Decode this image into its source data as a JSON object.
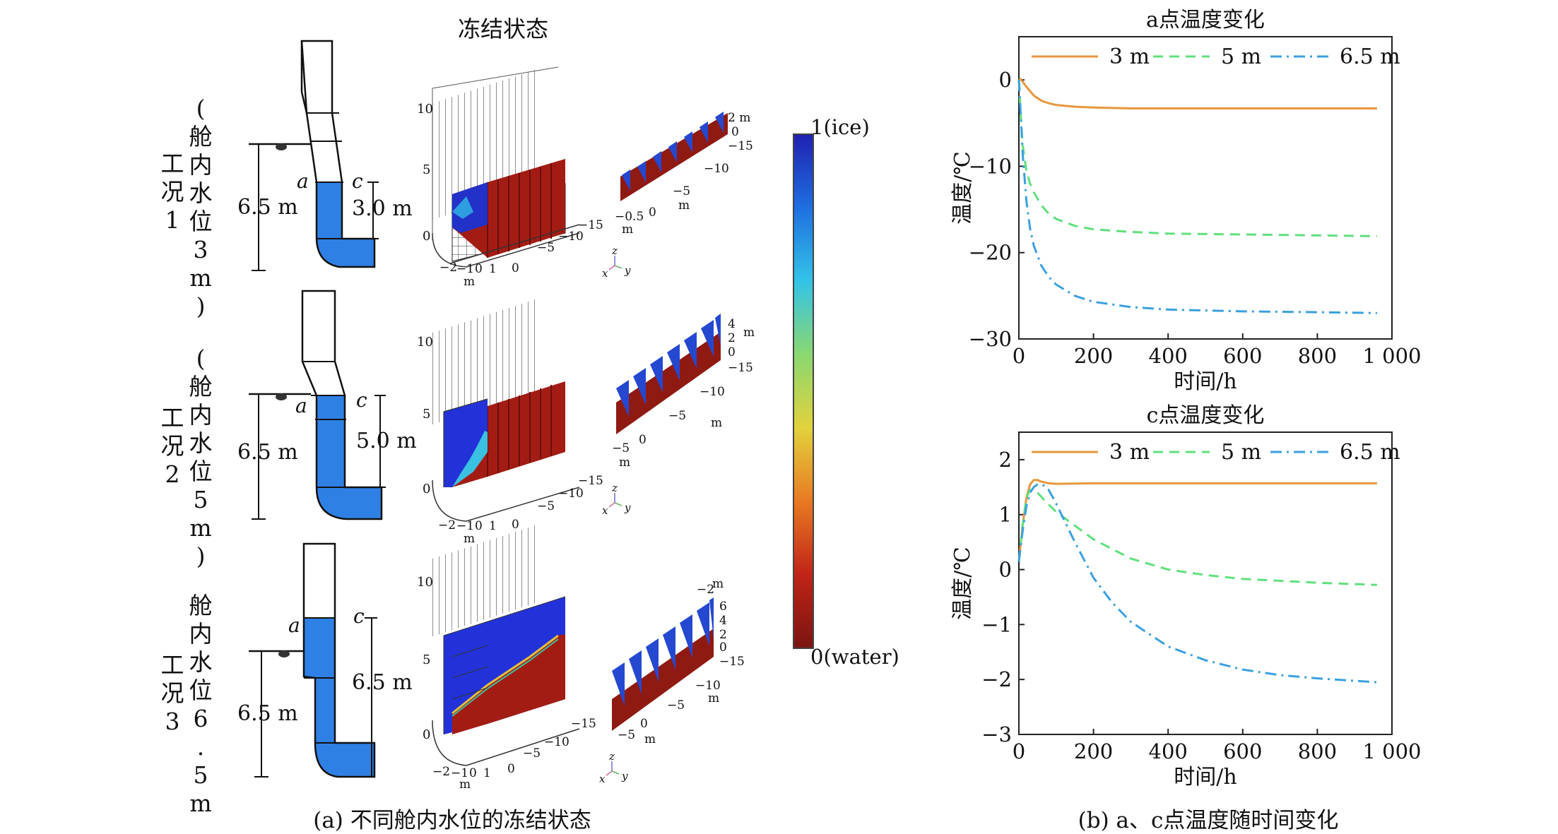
{
  "panel_a": {
    "title": "冻结状态",
    "caption": "(a) 不同舱内水位的冻结状态",
    "colorbar": {
      "top_label": "1(ice)",
      "bottom_label": "0(water)",
      "colors": [
        "#2020b0",
        "#1e6fe0",
        "#33c3e8",
        "#8ad870",
        "#e2d23c",
        "#e87a22",
        "#c02418",
        "#7a1410"
      ]
    },
    "cases": [
      {
        "left_label": "(\n舱\n内\n水\n位\n3\nm\n)",
        "right_label": "工\n况\n1",
        "height_label": "6.5 m",
        "level_label": "3.0 m",
        "point_a": "a",
        "point_c": "c",
        "main_z_ticks": [
          "10",
          "5",
          "0"
        ],
        "main_x_ticks": [
          "−2",
          "−1",
          "0",
          "1"
        ],
        "main_x_unit": "m",
        "main_y_ticks": [
          "0",
          "−5",
          "−10",
          "−15"
        ],
        "small_z_ticks": [
          "2 m",
          "0",
          "−15"
        ],
        "small_y_ticks": [
          "−10",
          "−5",
          "m"
        ],
        "small_x_ticks": [
          "−0.5",
          "0",
          "m"
        ],
        "axis_names": [
          "z",
          "x",
          "y"
        ]
      },
      {
        "left_label": "(\n舱\n内\n水\n位\n5\nm\n)",
        "right_label": "工\n况\n2",
        "height_label": "6.5 m",
        "level_label": "5.0 m",
        "point_a": "a",
        "point_c": "c",
        "main_z_ticks": [
          "10",
          "5",
          "0"
        ],
        "main_x_ticks": [
          "−2",
          "−1",
          "0",
          "1"
        ],
        "main_x_unit": "m",
        "main_y_ticks": [
          "0",
          "−5",
          "−10",
          "−15"
        ],
        "small_z_ticks": [
          "4",
          "m",
          "2",
          "0",
          "−15"
        ],
        "small_y_ticks": [
          "−10",
          "−5",
          "m"
        ],
        "small_x_ticks": [
          "−5",
          "0",
          "m"
        ],
        "axis_names": [
          "z",
          "x",
          "y"
        ]
      },
      {
        "left_label": "舱\n内\n水\n位\n6\n.\n5\nm",
        "right_label": "工\n况\n3",
        "height_label": "6.5 m",
        "level_label": "6.5 m",
        "point_a": "a",
        "point_c": "c",
        "main_z_ticks": [
          "10",
          "5",
          "0"
        ],
        "main_x_ticks": [
          "−2",
          "−1",
          "0",
          "1"
        ],
        "main_x_unit": "m",
        "main_y_ticks": [
          "0",
          "−5",
          "−10",
          "−15"
        ],
        "small_z_ticks": [
          "m",
          "−2",
          "6",
          "4",
          "2",
          "0",
          "−15"
        ],
        "small_y_ticks": [
          "−10",
          "−5",
          "m"
        ],
        "small_x_ticks": [
          "−5",
          "0",
          "m"
        ],
        "axis_names": [
          "z",
          "x",
          "y"
        ]
      }
    ]
  },
  "panel_b": {
    "caption": "(b) a、c点温度随时间变化"
  },
  "chart_data": [
    {
      "type": "line",
      "title": "a点温度变化",
      "xlabel": "时间/h",
      "ylabel": "温度/℃",
      "xlim": [
        0,
        1000
      ],
      "ylim": [
        -30,
        5
      ],
      "xticks": [
        0,
        200,
        400,
        600,
        800,
        1000
      ],
      "xtick_labels": [
        "0",
        "200",
        "400",
        "600",
        "800",
        "1 000"
      ],
      "yticks": [
        0,
        -10,
        -20,
        -30
      ],
      "ytick_labels": [
        "0",
        "−10",
        "−20",
        "−30"
      ],
      "series": [
        {
          "name": "3 m",
          "color": "#e8973e",
          "dash": "solid",
          "x": [
            0,
            5,
            10,
            20,
            40,
            60,
            80,
            100,
            150,
            200,
            300,
            400,
            600,
            800,
            960
          ],
          "y": [
            0,
            0.1,
            -0.2,
            -0.8,
            -1.8,
            -2.4,
            -2.7,
            -2.9,
            -3.1,
            -3.2,
            -3.3,
            -3.3,
            -3.3,
            -3.3,
            -3.3
          ]
        },
        {
          "name": "5 m",
          "color": "#5fe07c",
          "dash": "dashed",
          "x": [
            0,
            5,
            10,
            20,
            30,
            40,
            60,
            80,
            100,
            150,
            200,
            300,
            400,
            600,
            800,
            960
          ],
          "y": [
            0,
            -4,
            -7.5,
            -10.5,
            -12,
            -13,
            -14.5,
            -15.5,
            -16.1,
            -16.9,
            -17.3,
            -17.6,
            -17.8,
            -17.9,
            -18,
            -18.1
          ]
        },
        {
          "name": "6.5 m",
          "color": "#3aa0e0",
          "dash": "dashdot",
          "x": [
            0,
            5,
            10,
            20,
            30,
            40,
            60,
            80,
            100,
            150,
            200,
            300,
            400,
            500,
            600,
            800,
            960
          ],
          "y": [
            0,
            -4,
            -8.5,
            -14,
            -17.2,
            -19.2,
            -21.5,
            -22.8,
            -23.7,
            -25,
            -25.7,
            -26.3,
            -26.6,
            -26.7,
            -26.8,
            -26.9,
            -27
          ]
        }
      ]
    },
    {
      "type": "line",
      "title": "c点温度变化",
      "xlabel": "时间/h",
      "ylabel": "温度/℃",
      "xlim": [
        0,
        1000
      ],
      "ylim": [
        -3,
        2.5
      ],
      "xticks": [
        0,
        200,
        400,
        600,
        800,
        1000
      ],
      "xtick_labels": [
        "0",
        "200",
        "400",
        "600",
        "800",
        "1 000"
      ],
      "yticks": [
        2,
        1,
        0,
        -1,
        -2,
        -3
      ],
      "ytick_labels": [
        "2",
        "1",
        "0",
        "−1",
        "−2",
        "−3"
      ],
      "series": [
        {
          "name": "3 m",
          "color": "#e8973e",
          "dash": "solid",
          "x": [
            0,
            10,
            20,
            30,
            40,
            50,
            60,
            80,
            100,
            200,
            400,
            600,
            800,
            960
          ],
          "y": [
            0.15,
            0.8,
            1.3,
            1.55,
            1.63,
            1.63,
            1.6,
            1.57,
            1.56,
            1.57,
            1.57,
            1.57,
            1.57,
            1.57
          ]
        },
        {
          "name": "5 m",
          "color": "#5fe07c",
          "dash": "dashed",
          "x": [
            0,
            10,
            20,
            30,
            40,
            50,
            70,
            100,
            150,
            200,
            300,
            400,
            500,
            600,
            800,
            960
          ],
          "y": [
            0.15,
            0.8,
            1.3,
            1.45,
            1.45,
            1.4,
            1.25,
            1.05,
            0.8,
            0.55,
            0.2,
            0,
            -0.1,
            -0.17,
            -0.24,
            -0.28
          ]
        },
        {
          "name": "6.5 m",
          "color": "#3aa0e0",
          "dash": "dashdot",
          "x": [
            0,
            10,
            20,
            30,
            40,
            50,
            60,
            70,
            80,
            100,
            150,
            200,
            250,
            300,
            400,
            500,
            600,
            700,
            800,
            960
          ],
          "y": [
            0.15,
            0.7,
            1.15,
            1.4,
            1.5,
            1.55,
            1.55,
            1.52,
            1.45,
            1.2,
            0.5,
            -0.15,
            -0.6,
            -0.95,
            -1.4,
            -1.65,
            -1.82,
            -1.92,
            -1.98,
            -2.05
          ]
        }
      ]
    }
  ]
}
